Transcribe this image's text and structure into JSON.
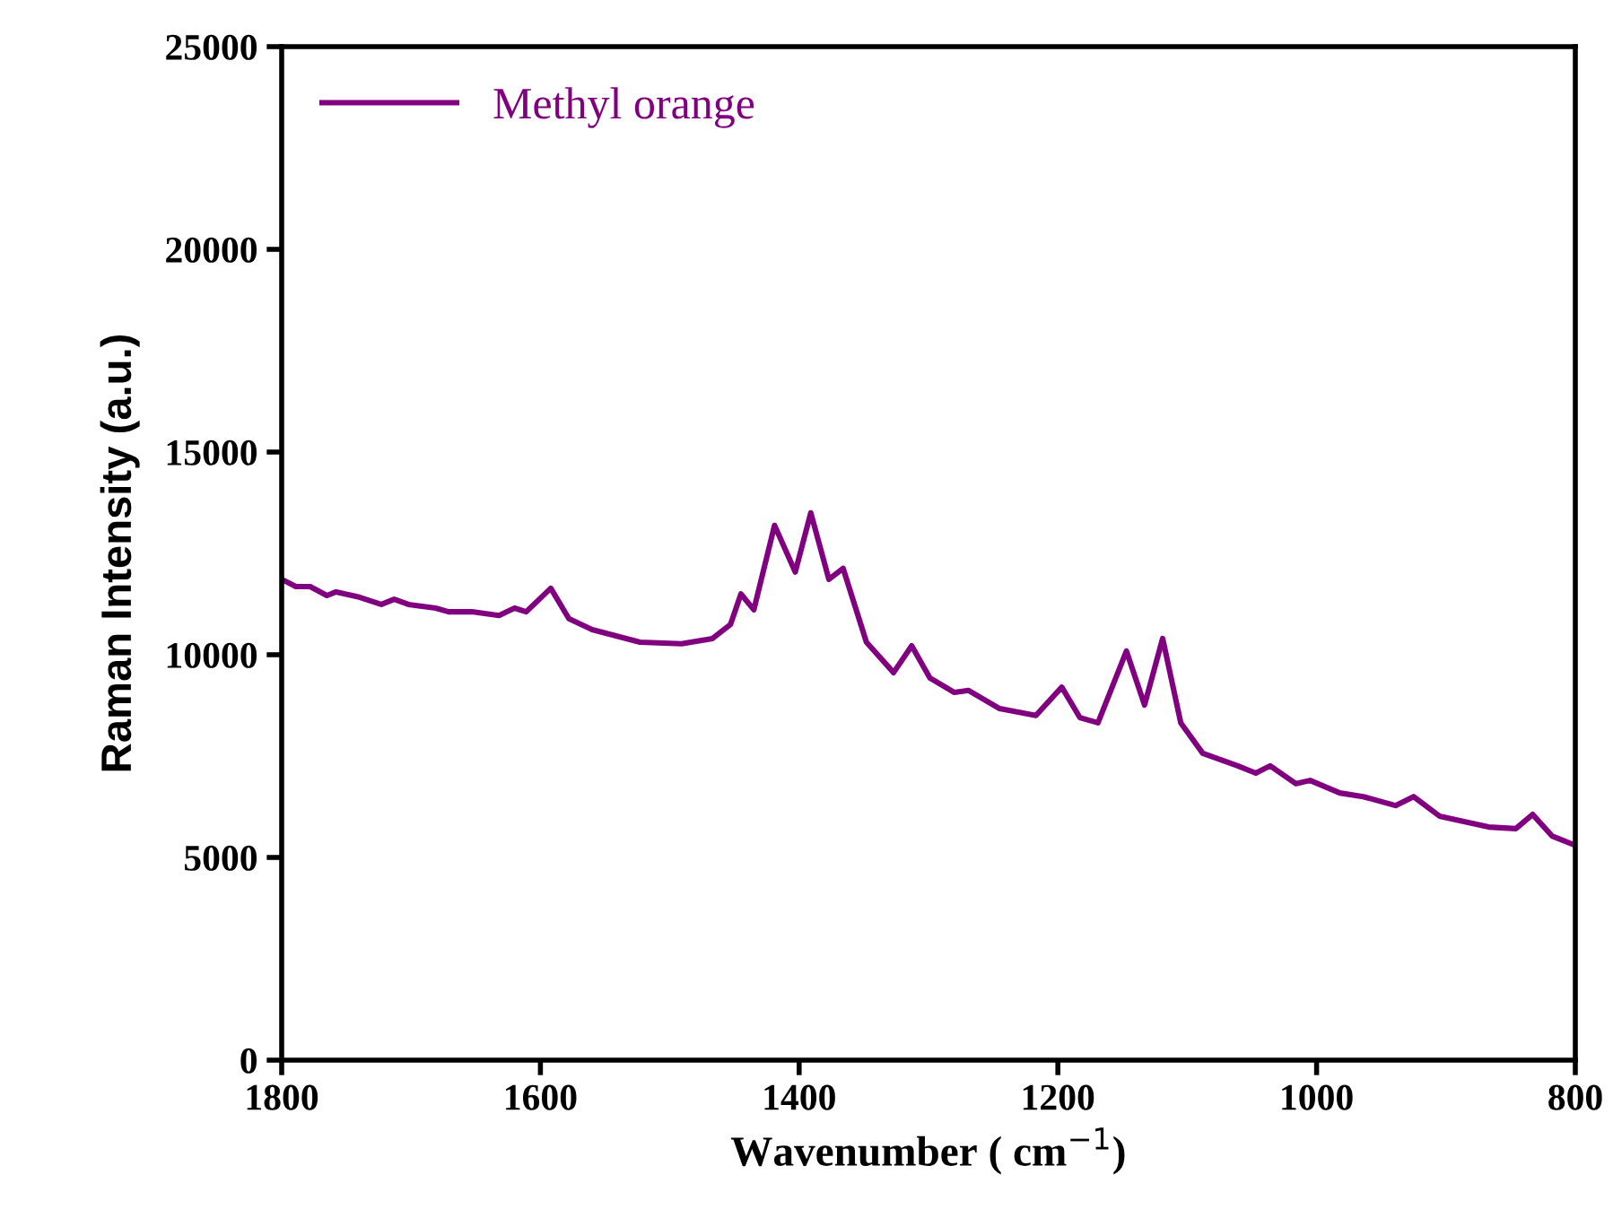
{
  "chart_data": {
    "type": "line",
    "xlabel": "Wavenumber ( cm$^{−1}$)",
    "ylabel": "Raman Intensity (a.u.)",
    "xlim": [
      1800,
      800
    ],
    "ylim": [
      0,
      25000
    ],
    "xticks": [
      1800,
      1600,
      1400,
      1200,
      1000,
      800
    ],
    "yticks": [
      0,
      5000,
      10000,
      15000,
      20000,
      25000
    ],
    "grid": false,
    "legend": "top left",
    "marker": "none",
    "line_style": "solid",
    "x": [
      1800,
      1789,
      1778,
      1765,
      1758,
      1740,
      1723,
      1713,
      1702,
      1681,
      1671,
      1653,
      1632,
      1620,
      1611,
      1592,
      1578,
      1560,
      1523,
      1491,
      1467,
      1453,
      1445,
      1435,
      1419,
      1403,
      1391,
      1377,
      1366,
      1348,
      1327,
      1313,
      1299,
      1280,
      1269,
      1245,
      1217,
      1197,
      1183,
      1169,
      1147,
      1133,
      1119,
      1105,
      1088,
      1061,
      1047,
      1036,
      1016,
      1005,
      982,
      964,
      939,
      925,
      905,
      867,
      846,
      833,
      818,
      801
    ],
    "series": [
      {
        "name": "Methyl orange",
        "color": "#800080",
        "values": [
          11860,
          11680,
          11680,
          11460,
          11550,
          11420,
          11240,
          11370,
          11240,
          11150,
          11060,
          11060,
          10970,
          11150,
          11060,
          11640,
          10890,
          10620,
          10310,
          10270,
          10400,
          10750,
          11500,
          11110,
          13190,
          12040,
          13500,
          11860,
          12130,
          10310,
          9560,
          10220,
          9430,
          9070,
          9120,
          8670,
          8500,
          9200,
          8450,
          8320,
          10090,
          8760,
          10400,
          8320,
          7570,
          7260,
          7080,
          7260,
          6820,
          6900,
          6590,
          6500,
          6280,
          6500,
          6020,
          5750,
          5710,
          6060,
          5530,
          5310
        ]
      }
    ]
  }
}
